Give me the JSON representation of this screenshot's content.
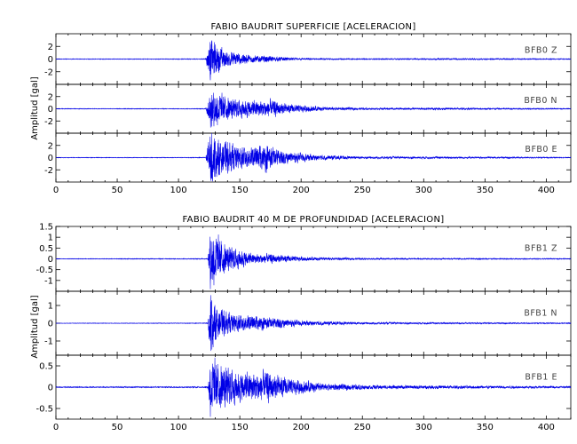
{
  "chart_data": [
    {
      "type": "line",
      "title": "FABIO BAUDRIT SUPERFICIE [ACELERACION]",
      "ylabel": "Amplitud [gal]",
      "xlabel": "",
      "xlim": [
        0,
        420
      ],
      "xticks": [
        0,
        50,
        100,
        150,
        200,
        250,
        300,
        350,
        400
      ],
      "grid": false,
      "series": [
        {
          "name": "BFB0  Z",
          "color": "#0000e6",
          "ylim": [
            -4,
            4
          ],
          "yticks": [
            -2,
            0,
            2
          ],
          "envelope": [
            [
              0,
              0.04
            ],
            [
              100,
              0.04
            ],
            [
              122,
              0.05
            ],
            [
              126,
              3.0
            ],
            [
              130,
              2.1
            ],
            [
              140,
              1.0
            ],
            [
              160,
              0.5
            ],
            [
              175,
              0.4
            ],
            [
              200,
              0.12
            ],
            [
              250,
              0.06
            ],
            [
              315,
              0.1
            ],
            [
              420,
              0.05
            ]
          ]
        },
        {
          "name": "BFB0  N",
          "color": "#0000e6",
          "ylim": [
            -4,
            4
          ],
          "yticks": [
            -2,
            0,
            2
          ],
          "envelope": [
            [
              0,
              0.04
            ],
            [
              100,
              0.04
            ],
            [
              122,
              0.05
            ],
            [
              126,
              2.6
            ],
            [
              132,
              2.3
            ],
            [
              145,
              1.3
            ],
            [
              160,
              1.1
            ],
            [
              175,
              1.2
            ],
            [
              190,
              0.6
            ],
            [
              220,
              0.25
            ],
            [
              260,
              0.12
            ],
            [
              315,
              0.15
            ],
            [
              420,
              0.05
            ]
          ]
        },
        {
          "name": "BFB0  E",
          "color": "#0000e6",
          "ylim": [
            -4,
            4
          ],
          "yticks": [
            -2,
            0,
            2
          ],
          "envelope": [
            [
              0,
              0.04
            ],
            [
              100,
              0.04
            ],
            [
              122,
              0.05
            ],
            [
              126,
              3.7
            ],
            [
              132,
              2.5
            ],
            [
              145,
              1.8
            ],
            [
              160,
              1.4
            ],
            [
              172,
              1.9
            ],
            [
              185,
              0.9
            ],
            [
              210,
              0.4
            ],
            [
              250,
              0.15
            ],
            [
              315,
              0.15
            ],
            [
              420,
              0.05
            ]
          ]
        }
      ]
    },
    {
      "type": "line",
      "title": "FABIO BAUDRIT 40 M DE PROFUNDIDAD [ACELERACION]",
      "ylabel": "Amplitud [gal]",
      "xlabel": "",
      "xlim": [
        0,
        420
      ],
      "xticks": [
        0,
        50,
        100,
        150,
        200,
        250,
        300,
        350,
        400
      ],
      "grid": false,
      "series": [
        {
          "name": "BFB1  Z",
          "color": "#0000e6",
          "ylim": [
            -1.5,
            1.5
          ],
          "yticks": [
            -1.0,
            -0.5,
            0.0,
            0.5,
            1.0,
            1.5
          ],
          "envelope": [
            [
              0,
              0.01
            ],
            [
              120,
              0.015
            ],
            [
              124,
              0.02
            ],
            [
              126,
              1.2
            ],
            [
              130,
              1.0
            ],
            [
              140,
              0.5
            ],
            [
              160,
              0.2
            ],
            [
              175,
              0.18
            ],
            [
              200,
              0.08
            ],
            [
              250,
              0.03
            ],
            [
              420,
              0.015
            ]
          ]
        },
        {
          "name": "BFB1  N",
          "color": "#0000e6",
          "ylim": [
            -1.8,
            1.8
          ],
          "yticks": [
            -1,
            0,
            1
          ],
          "envelope": [
            [
              0,
              0.01
            ],
            [
              120,
              0.015
            ],
            [
              124,
              0.02
            ],
            [
              126,
              1.6
            ],
            [
              130,
              0.8
            ],
            [
              140,
              0.5
            ],
            [
              160,
              0.35
            ],
            [
              175,
              0.28
            ],
            [
              200,
              0.12
            ],
            [
              250,
              0.05
            ],
            [
              420,
              0.02
            ]
          ]
        },
        {
          "name": "BFB1  E",
          "color": "#0000e6",
          "ylim": [
            -0.75,
            0.75
          ],
          "yticks": [
            -0.5,
            0.0,
            0.5
          ],
          "envelope": [
            [
              0,
              0.01
            ],
            [
              120,
              0.012
            ],
            [
              124,
              0.02
            ],
            [
              126,
              0.6
            ],
            [
              135,
              0.45
            ],
            [
              150,
              0.28
            ],
            [
              172,
              0.3
            ],
            [
              190,
              0.16
            ],
            [
              220,
              0.07
            ],
            [
              260,
              0.04
            ],
            [
              420,
              0.02
            ]
          ]
        }
      ]
    }
  ]
}
